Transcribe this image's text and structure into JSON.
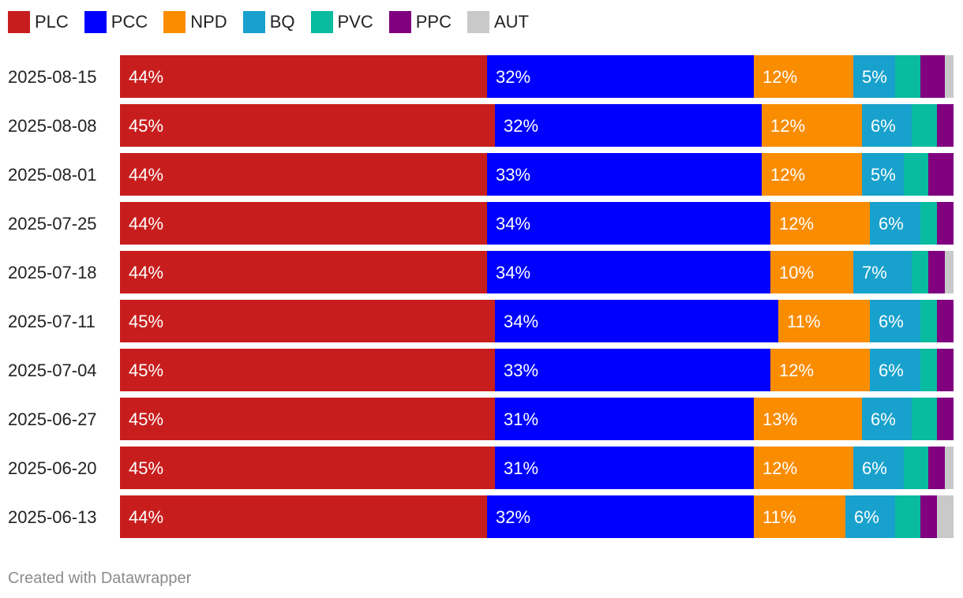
{
  "chart_data": {
    "type": "bar",
    "orientation": "horizontal",
    "stacked": true,
    "title": "",
    "xlabel": "",
    "ylabel": "",
    "xlim": [
      0,
      100
    ],
    "legend_position": "top-left",
    "categories": [
      "2025-08-15",
      "2025-08-08",
      "2025-08-01",
      "2025-07-25",
      "2025-07-18",
      "2025-07-11",
      "2025-07-04",
      "2025-06-27",
      "2025-06-20",
      "2025-06-13"
    ],
    "series": [
      {
        "name": "PLC",
        "color": "#c71e1d",
        "values": [
          44,
          45,
          44,
          44,
          44,
          45,
          45,
          45,
          45,
          44
        ]
      },
      {
        "name": "PCC",
        "color": "#0000ff",
        "values": [
          32,
          32,
          33,
          34,
          34,
          34,
          33,
          31,
          31,
          32
        ]
      },
      {
        "name": "NPD",
        "color": "#fa8c00",
        "values": [
          12,
          12,
          12,
          12,
          10,
          11,
          12,
          13,
          12,
          11
        ]
      },
      {
        "name": "BQ",
        "color": "#18a1cd",
        "values": [
          5,
          6,
          5,
          6,
          7,
          6,
          6,
          6,
          6,
          6
        ]
      },
      {
        "name": "PVC",
        "color": "#09bb9f",
        "values": [
          3,
          3,
          3,
          2,
          2,
          2,
          2,
          3,
          3,
          3
        ]
      },
      {
        "name": "PPC",
        "color": "#800080",
        "values": [
          3,
          2,
          3,
          2,
          2,
          2,
          2,
          2,
          2,
          2
        ]
      },
      {
        "name": "AUT",
        "color": "#c9c9c9",
        "values": [
          1,
          0,
          0,
          0,
          1,
          0,
          0,
          0,
          1,
          2
        ]
      }
    ],
    "data_labels": [
      [
        "44%",
        "32%",
        "12%",
        "5%",
        "",
        "",
        ""
      ],
      [
        "45%",
        "32%",
        "12%",
        "6%",
        "",
        "",
        ""
      ],
      [
        "44%",
        "33%",
        "12%",
        "5%",
        "",
        "",
        ""
      ],
      [
        "44%",
        "34%",
        "12%",
        "6%",
        "",
        "",
        ""
      ],
      [
        "44%",
        "34%",
        "10%",
        "7%",
        "",
        "",
        ""
      ],
      [
        "45%",
        "34%",
        "11%",
        "6%",
        "",
        "",
        ""
      ],
      [
        "45%",
        "33%",
        "12%",
        "6%",
        "",
        "",
        ""
      ],
      [
        "45%",
        "31%",
        "13%",
        "6%",
        "",
        "",
        ""
      ],
      [
        "45%",
        "31%",
        "12%",
        "6%",
        "",
        "",
        ""
      ],
      [
        "44%",
        "32%",
        "11%",
        "6%",
        "",
        "",
        ""
      ]
    ]
  },
  "footer": {
    "credit": "Created with Datawrapper"
  }
}
